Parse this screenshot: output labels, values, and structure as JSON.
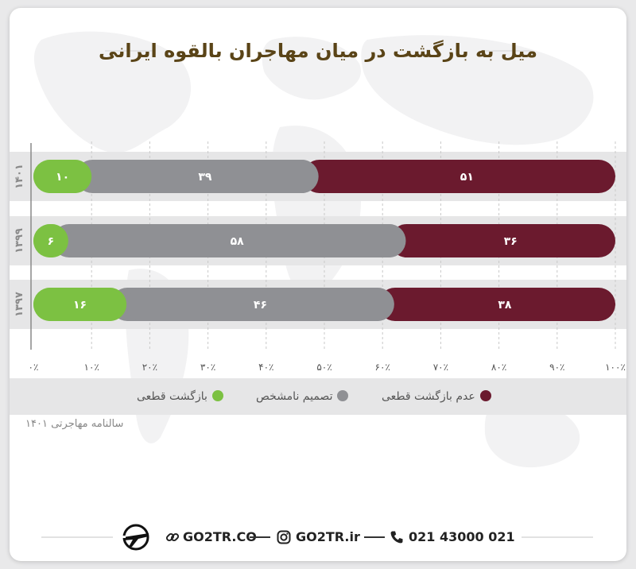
{
  "title": "میل به بازگشت در میان مهاجران بالقوه ایرانی",
  "chart_data": {
    "type": "bar",
    "orientation": "horizontal",
    "stacked": true,
    "direction": "right-to-left",
    "categories": [
      "۱۴۰۱",
      "۱۳۹۹",
      "۱۳۹۷"
    ],
    "series": [
      {
        "name": "عدم بازگشت قطعی",
        "color": "#6b1a2e",
        "values": [
          51,
          36,
          38
        ],
        "labels": [
          "۵۱",
          "۳۶",
          "۳۸"
        ]
      },
      {
        "name": "تصمیم نامشخص",
        "color": "#8f9094",
        "values": [
          39,
          58,
          46
        ],
        "labels": [
          "۳۹",
          "۵۸",
          "۴۶"
        ]
      },
      {
        "name": "بازگشت قطعی",
        "color": "#7cc142",
        "values": [
          10,
          6,
          16
        ],
        "labels": [
          "۱۰",
          "۶",
          "۱۶"
        ]
      }
    ],
    "xlim": [
      0,
      100
    ],
    "x_ticks": [
      0,
      10,
      20,
      30,
      40,
      50,
      60,
      70,
      80,
      90,
      100
    ],
    "x_tick_labels": [
      "۰٪",
      "۱۰٪",
      "۲۰٪",
      "۳۰٪",
      "۴۰٪",
      "۵۰٪",
      "۶۰٪",
      "۷۰٪",
      "۸۰٪",
      "۹۰٪",
      "۱۰۰٪"
    ],
    "grid": true,
    "legend_position": "bottom"
  },
  "source": "سالنامه مهاجرتی ۱۴۰۱",
  "footer": {
    "site": "GO2TR.CO",
    "instagram": "GO2TR.ir",
    "phone": "021 43000 021"
  },
  "icons": {
    "logo": "go2tr-airplane-logo",
    "site": "link-icon",
    "instagram": "instagram-icon",
    "phone": "phone-icon"
  }
}
